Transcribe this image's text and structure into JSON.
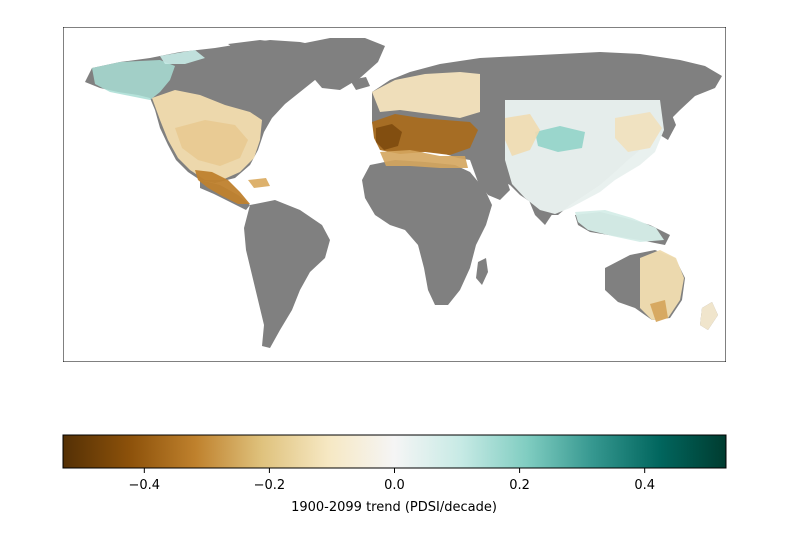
{
  "map": {
    "type": "gridded-trend-map",
    "land_color": "#808080",
    "ocean_color": "#ffffff",
    "frame": true
  },
  "colorbar": {
    "label": "1900-2099 trend (PDSI/decade)",
    "range": [
      -0.53,
      0.53
    ],
    "ticks": [
      {
        "value": -0.4,
        "label": "−0.4"
      },
      {
        "value": -0.2,
        "label": "−0.2"
      },
      {
        "value": 0.0,
        "label": "0.0"
      },
      {
        "value": 0.2,
        "label": "0.2"
      },
      {
        "value": 0.4,
        "label": "0.4"
      }
    ],
    "colormap": "BrBG",
    "stops": [
      "#543005",
      "#8c510a",
      "#bf812d",
      "#dfc27d",
      "#f6e8c3",
      "#f5f5f5",
      "#c7eae5",
      "#80cdc1",
      "#35978f",
      "#01665e",
      "#003c30"
    ]
  }
}
